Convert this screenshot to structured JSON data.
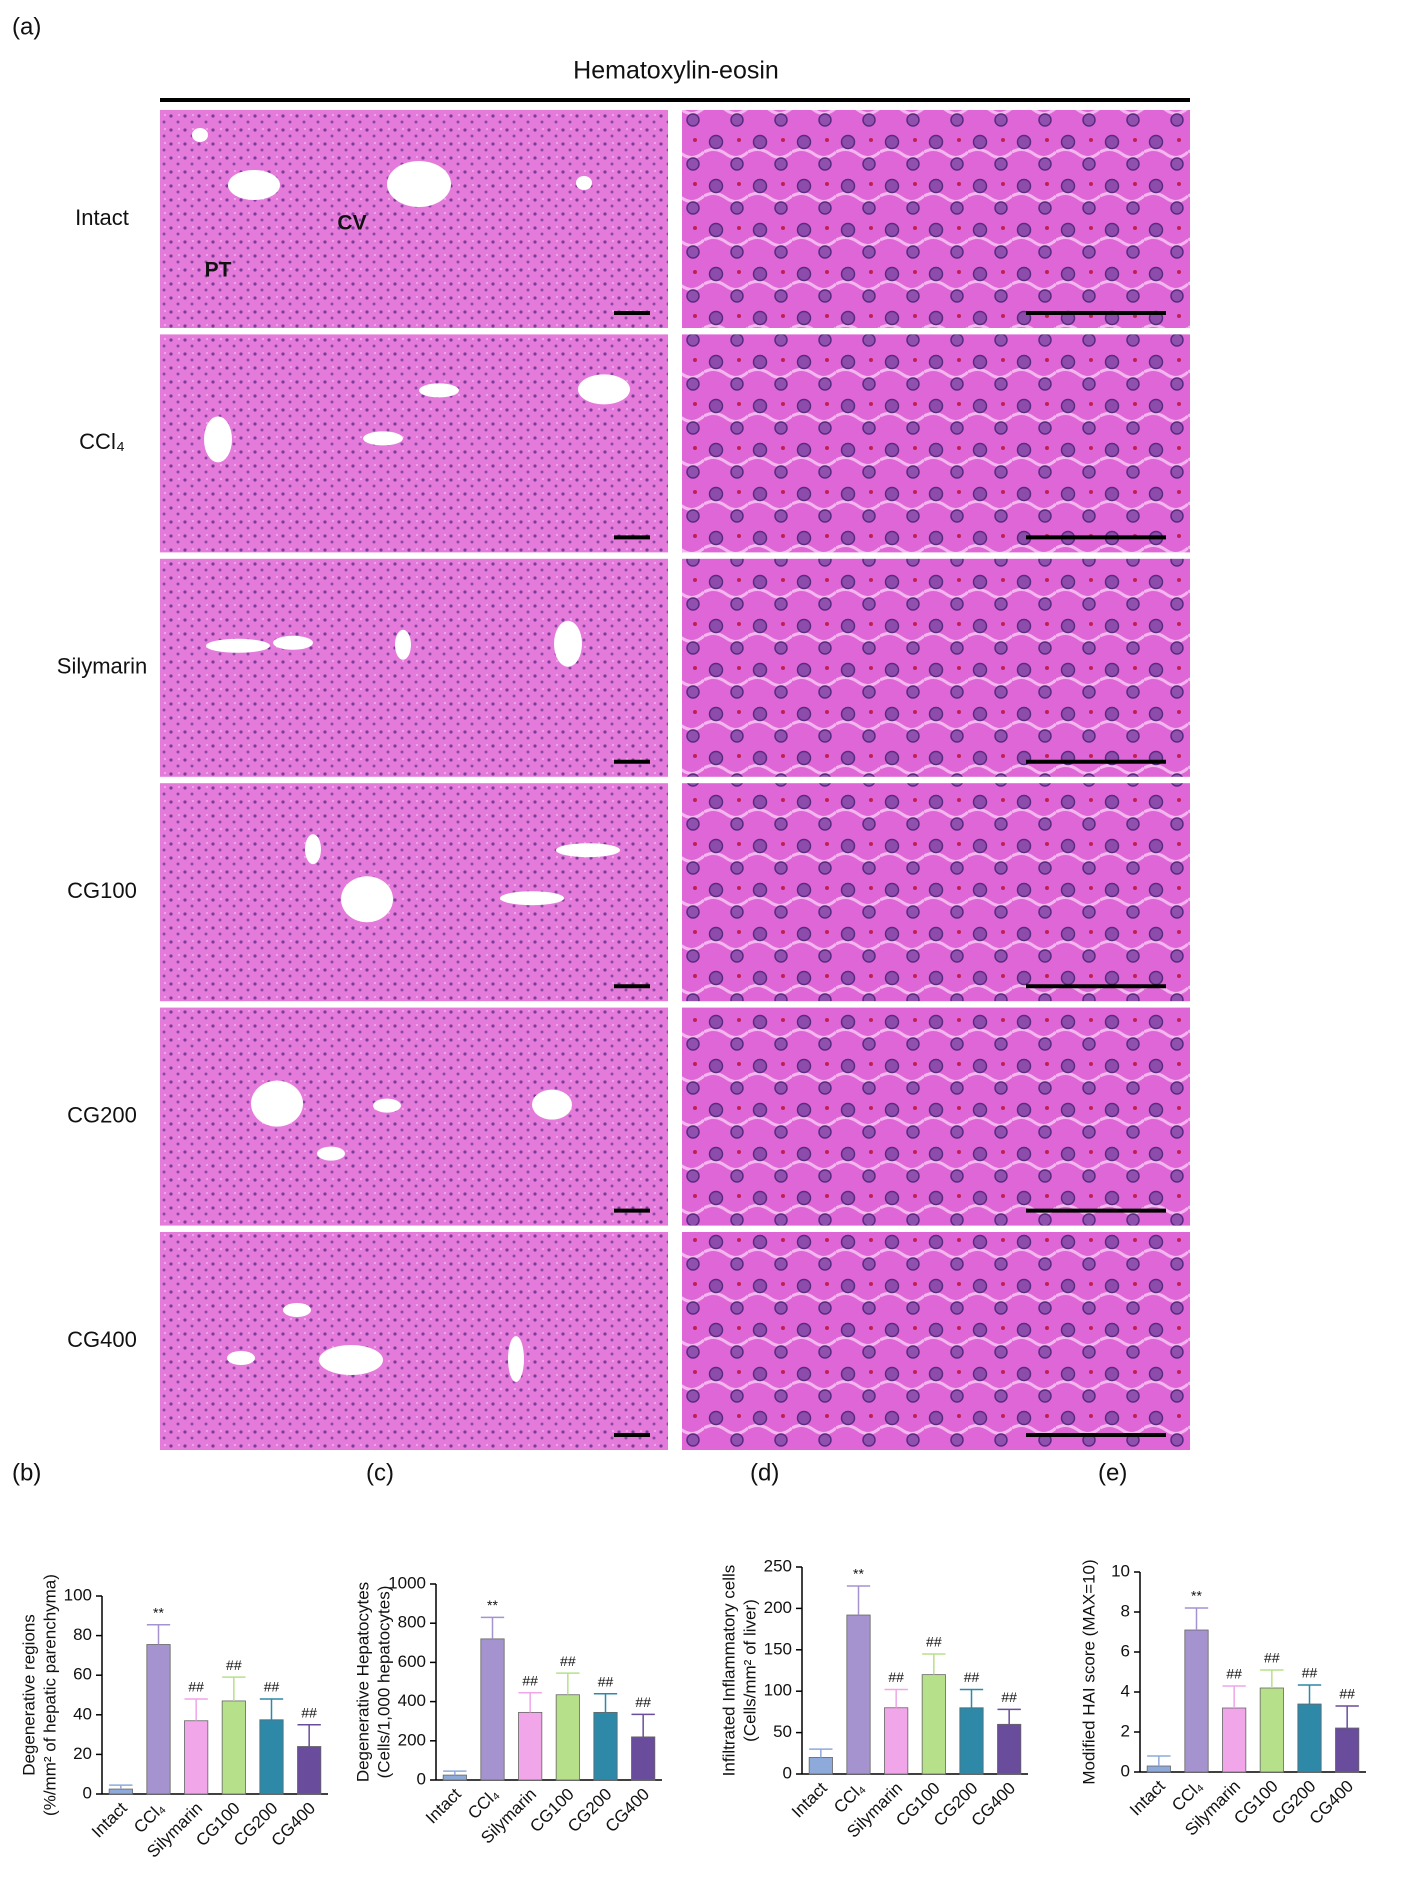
{
  "panel_a": {
    "label": "(a)",
    "title": "Hematoxylin-eosin",
    "rows": [
      "Intact",
      "CCl₄",
      "Silymarin",
      "CG100",
      "CG200",
      "CG400"
    ],
    "annotations": [
      "CV",
      "PT"
    ]
  },
  "chart_data": [
    {
      "type": "bar",
      "panel": "(b)",
      "ylabel": [
        "Degenerative regions",
        "(%/mm² of hepatic parenchyma)"
      ],
      "categories": [
        "Intact",
        "CCl₄",
        "Silymarin",
        "CG100",
        "CG200",
        "CG400"
      ],
      "colors": [
        "#8eaadb",
        "#a593d0",
        "#f0a6e8",
        "#b7e08a",
        "#2e88a8",
        "#6a4c9c"
      ],
      "values": [
        2.5,
        75.5,
        37,
        47,
        37.5,
        24
      ],
      "errors": [
        2,
        10,
        11,
        12,
        10.5,
        11
      ],
      "annotations": [
        null,
        "**",
        "##",
        "##",
        "##",
        "##"
      ],
      "ylim": [
        0,
        100
      ],
      "yticks": [
        0,
        20,
        40,
        60,
        80,
        100
      ]
    },
    {
      "type": "bar",
      "panel": "(c)",
      "ylabel": [
        "Degenerative Hepatocytes",
        "(Cells/1,000 hepatocytes)"
      ],
      "categories": [
        "Intact",
        "CCl₄",
        "Silymarin",
        "CG100",
        "CG200",
        "CG400"
      ],
      "colors": [
        "#8eaadb",
        "#a593d0",
        "#f0a6e8",
        "#b7e08a",
        "#2e88a8",
        "#6a4c9c"
      ],
      "values": [
        25,
        720,
        345,
        435,
        345,
        220
      ],
      "errors": [
        20,
        110,
        100,
        110,
        95,
        115
      ],
      "annotations": [
        null,
        "**",
        "##",
        "##",
        "##",
        "##"
      ],
      "ylim": [
        0,
        1000
      ],
      "yticks": [
        0,
        200,
        400,
        600,
        800,
        1000
      ]
    },
    {
      "type": "bar",
      "panel": "(d)",
      "ylabel": [
        "Infiltrated Inflammatory cells",
        "(Cells/mm² of liver)"
      ],
      "categories": [
        "Intact",
        "CCl₄",
        "Silymarin",
        "CG100",
        "CG200",
        "CG400"
      ],
      "colors": [
        "#8eaadb",
        "#a593d0",
        "#f0a6e8",
        "#b7e08a",
        "#2e88a8",
        "#6a4c9c"
      ],
      "values": [
        20,
        192,
        80,
        120,
        80,
        60
      ],
      "errors": [
        10,
        35,
        22,
        25,
        22,
        18
      ],
      "annotations": [
        null,
        "**",
        "##",
        "##",
        "##",
        "##"
      ],
      "ylim": [
        0,
        250
      ],
      "yticks": [
        0,
        50,
        100,
        150,
        200,
        250
      ]
    },
    {
      "type": "bar",
      "panel": "(e)",
      "ylabel": [
        "Modified HAI score (MAX=10)"
      ],
      "categories": [
        "Intact",
        "CCl₄",
        "Silymarin",
        "CG100",
        "CG200",
        "CG400"
      ],
      "colors": [
        "#8eaadb",
        "#a593d0",
        "#f0a6e8",
        "#b7e08a",
        "#2e88a8",
        "#6a4c9c"
      ],
      "values": [
        0.3,
        7.1,
        3.2,
        4.2,
        3.4,
        2.2
      ],
      "errors": [
        0.5,
        1.1,
        1.1,
        0.9,
        0.95,
        1.1
      ],
      "annotations": [
        null,
        "**",
        "##",
        "##",
        "##",
        "##"
      ],
      "ylim": [
        0,
        10
      ],
      "yticks": [
        0,
        2,
        4,
        6,
        8,
        10
      ]
    }
  ]
}
